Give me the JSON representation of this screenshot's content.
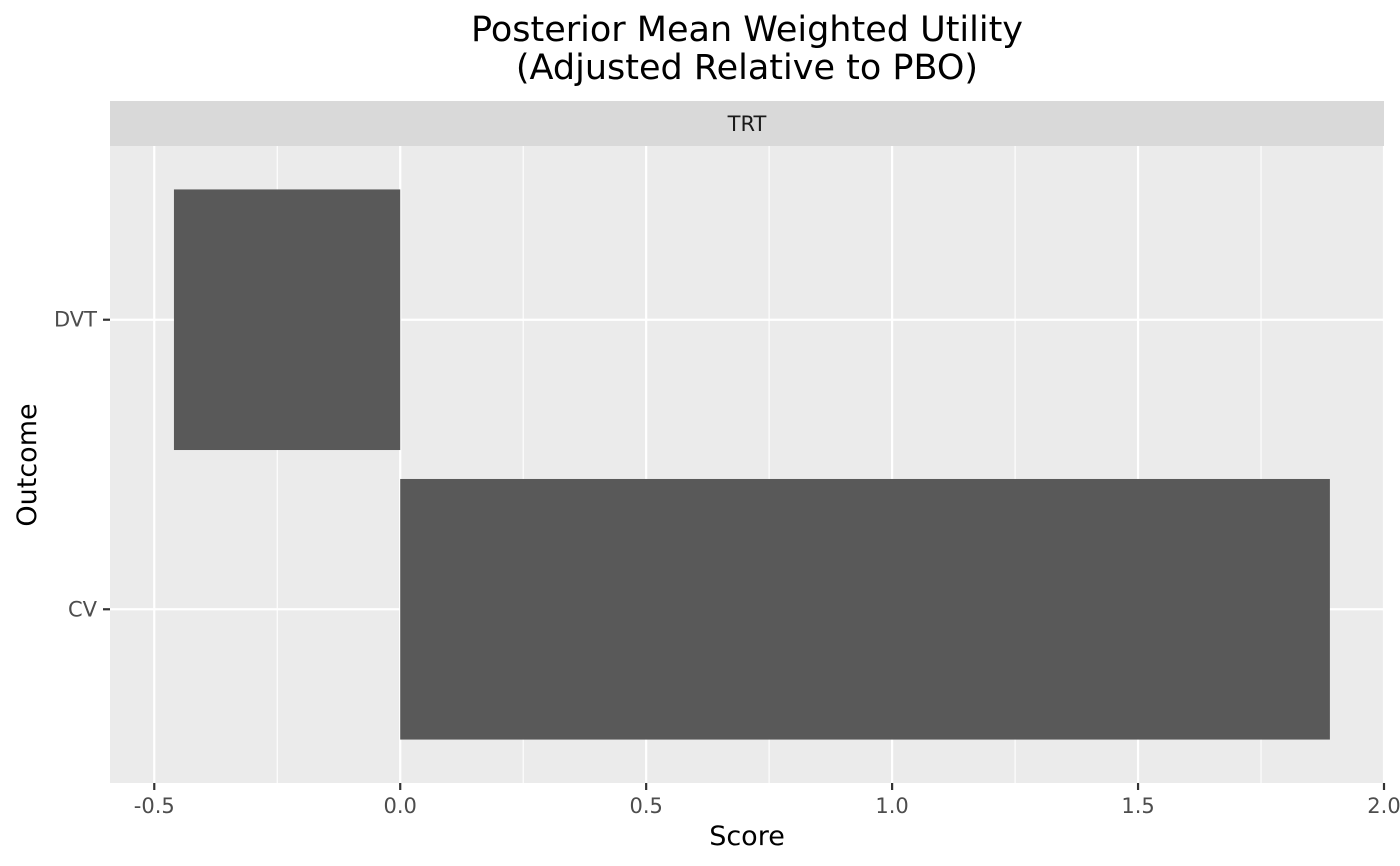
{
  "chart_data": {
    "type": "bar",
    "orientation": "horizontal",
    "title": "Posterior Mean Weighted Utility",
    "subtitle": "(Adjusted Relative to PBO)",
    "facet": "TRT",
    "xlabel": "Score",
    "ylabel": "Outcome",
    "categories": [
      "CV",
      "DVT"
    ],
    "values": [
      1.89,
      -0.46
    ],
    "xlim": [
      -0.59,
      2.0
    ],
    "xticks": [
      -0.5,
      0.0,
      0.5,
      1.0,
      1.5,
      2.0
    ],
    "xtick_labels": [
      "-0.5",
      "0.0",
      "0.5",
      "1.0",
      "1.5",
      "2.0"
    ],
    "grid": true,
    "legend": "none",
    "colors": {
      "bar": "#595959",
      "panel": "#ebebeb",
      "strip": "#d9d9d9",
      "grid_major": "#ffffff"
    }
  }
}
